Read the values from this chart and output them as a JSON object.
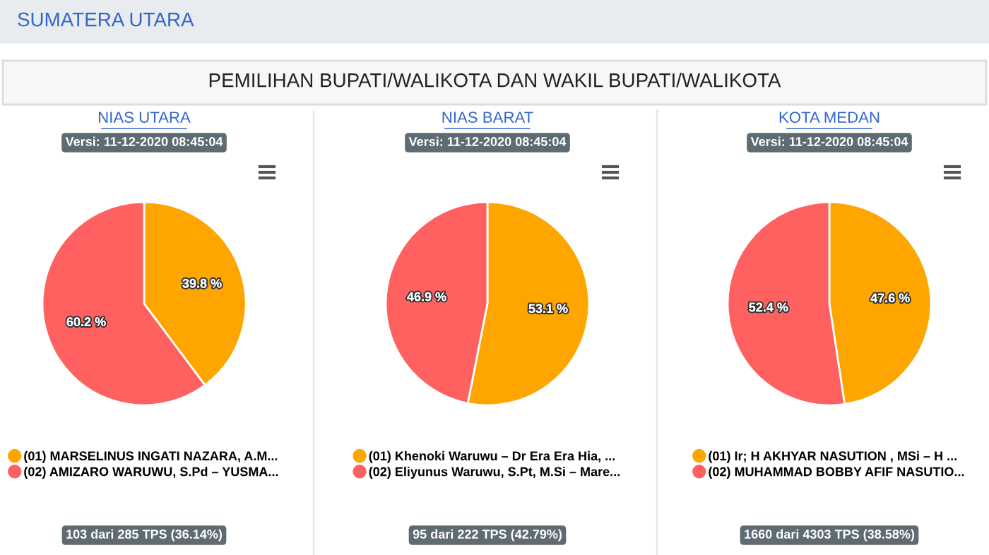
{
  "chart_data": [
    {
      "type": "other",
      "title": "PEMILIHAN BUPATI/WALIKOTA DAN WAKIL BUPATI/WALIKOTA",
      "annotations": [
        "SUMATERA UTARA"
      ]
    },
    {
      "type": "pie",
      "title": "NIAS UTARA",
      "subtitle": "Versi: 11-12-2020 08:45:04",
      "categories": [
        "(01) MARSELINUS INGATI NAZARA, A.M...",
        "(02) AMIZARO WARUWU, S.Pd – YUSMA..."
      ],
      "values": [
        39.8,
        60.2
      ],
      "value_labels": [
        "39.8 %",
        "60.2 %"
      ],
      "colors": [
        "#ffa500",
        "#ff6161"
      ],
      "legend": "bottom",
      "annotations": [
        "103 dari 285 TPS (36.14%)"
      ]
    },
    {
      "type": "pie",
      "title": "NIAS BARAT",
      "subtitle": "Versi: 11-12-2020 08:45:04",
      "categories": [
        "(01) Khenoki Waruwu – Dr Era Era Hia, ...",
        "(02) Eliyunus Waruwu, S.Pt, M.Si – Mare..."
      ],
      "values": [
        53.1,
        46.9
      ],
      "value_labels": [
        "53.1 %",
        "46.9 %"
      ],
      "colors": [
        "#ffa500",
        "#ff6161"
      ],
      "legend": "bottom",
      "annotations": [
        "95 dari 222 TPS (42.79%)"
      ]
    },
    {
      "type": "pie",
      "title": "KOTA MEDAN",
      "subtitle": "Versi: 11-12-2020 08:45:04",
      "categories": [
        "(01) Ir; H AKHYAR NASUTION , MSi – H ...",
        "(02) MUHAMMAD BOBBY AFIF NASUTIO..."
      ],
      "values": [
        47.6,
        52.4
      ],
      "value_labels": [
        "47.6 %",
        "52.4 %"
      ],
      "colors": [
        "#ffa500",
        "#ff6161"
      ],
      "legend": "bottom",
      "annotations": [
        "1660 dari 4303 TPS (38.58%)"
      ]
    }
  ]
}
